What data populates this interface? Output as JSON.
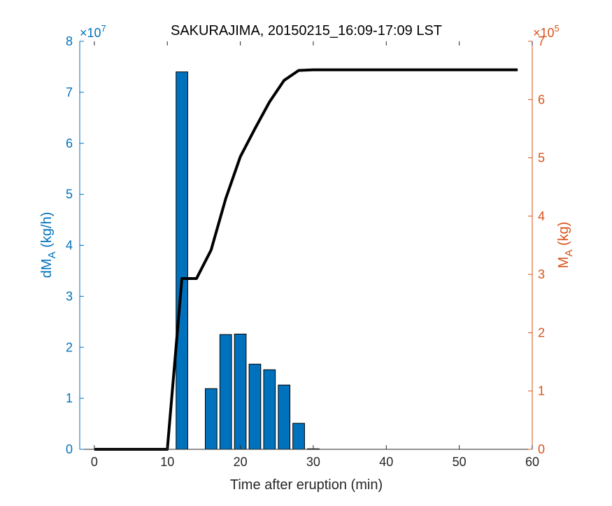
{
  "chart_data": {
    "type": "bar",
    "title": "SAKURAJIMA, 20150215_16:09-17:09 LST",
    "xlabel": "Time after eruption (min)",
    "xlim": [
      -2,
      60
    ],
    "xticks": [
      0,
      10,
      20,
      30,
      40,
      50,
      60
    ],
    "left_axis": {
      "label_main": "dM",
      "label_sub": "A",
      "label_unit": " (kg/h)",
      "exponent_label": "×10",
      "exponent": "7",
      "ylim": [
        0,
        8
      ],
      "ticks": [
        0,
        1,
        2,
        3,
        4,
        5,
        6,
        7,
        8
      ],
      "color": "#0072BD"
    },
    "right_axis": {
      "label_main": "M",
      "label_sub": "A",
      "label_unit": " (kg)",
      "exponent_label": "×10",
      "exponent": "5",
      "ylim": [
        0,
        7
      ],
      "ticks": [
        0,
        1,
        2,
        3,
        4,
        5,
        6,
        7
      ],
      "color": "#D95319"
    },
    "bars": {
      "axis": "left",
      "bar_width": 1.6,
      "color": "#0072BD",
      "x": [
        12,
        16,
        18,
        20,
        22,
        24,
        26,
        28,
        30
      ],
      "values": [
        7.4,
        1.19,
        2.25,
        2.26,
        1.67,
        1.56,
        1.26,
        0.51,
        0.01
      ]
    },
    "line": {
      "axis": "right",
      "color": "#000000",
      "x": [
        0,
        10,
        12,
        14,
        16,
        18,
        20,
        22,
        24,
        26,
        28,
        30,
        58
      ],
      "y": [
        0,
        0,
        2.93,
        2.93,
        3.42,
        4.3,
        5.02,
        5.5,
        5.96,
        6.33,
        6.5,
        6.51,
        6.51
      ]
    }
  }
}
